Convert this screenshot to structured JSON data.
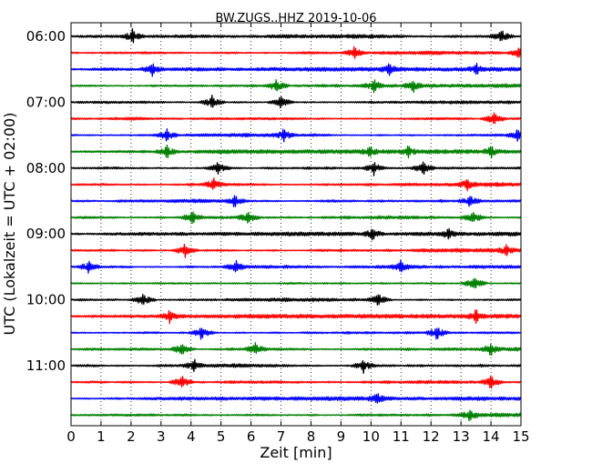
{
  "chart_data": {
    "type": "line",
    "title": "BW.ZUGS..HHZ 2019-10-06",
    "xlabel": "Zeit  [min]",
    "ylabel": "UTC (Lokalzeit = UTC + 02:00)",
    "xlim": [
      0,
      15
    ],
    "x_ticks": [
      "0",
      "1",
      "2",
      "3",
      "4",
      "5",
      "6",
      "7",
      "8",
      "9",
      "10",
      "11",
      "12",
      "13",
      "14",
      "15"
    ],
    "y_ticks": [
      "06:00",
      "07:00",
      "08:00",
      "09:00",
      "10:00",
      "11:00"
    ],
    "rows_per_hour": 4,
    "minutes_per_row": 15,
    "grid": "vertical dotted",
    "colors": [
      "#000000",
      "#ff0000",
      "#0000ff",
      "#008000"
    ],
    "series": [
      {
        "start": "06:00",
        "bursts": [
          2.05,
          14.35
        ]
      },
      {
        "start": "06:15",
        "bursts": [
          9.45,
          14.95
        ]
      },
      {
        "start": "06:30",
        "bursts": [
          2.7,
          10.6,
          13.5
        ]
      },
      {
        "start": "06:45",
        "bursts": [
          6.85,
          10.1,
          11.4
        ]
      },
      {
        "start": "07:00",
        "bursts": [
          4.7,
          7.0
        ]
      },
      {
        "start": "07:15",
        "bursts": [
          14.1
        ]
      },
      {
        "start": "07:30",
        "bursts": [
          3.2,
          7.1,
          14.9
        ]
      },
      {
        "start": "07:45",
        "bursts": [
          3.2,
          9.95,
          11.25,
          14.0
        ]
      },
      {
        "start": "08:00",
        "bursts": [
          4.9,
          10.1,
          11.75
        ]
      },
      {
        "start": "08:15",
        "bursts": [
          4.75,
          13.2
        ]
      },
      {
        "start": "08:30",
        "bursts": [
          5.45,
          13.3
        ]
      },
      {
        "start": "08:45",
        "bursts": [
          4.05,
          5.9,
          13.4
        ]
      },
      {
        "start": "09:00",
        "bursts": [
          10.05,
          12.6
        ]
      },
      {
        "start": "09:15",
        "bursts": [
          3.8,
          14.5
        ]
      },
      {
        "start": "09:30",
        "bursts": [
          0.6,
          5.5,
          11.0
        ]
      },
      {
        "start": "09:45",
        "bursts": [
          13.45
        ]
      },
      {
        "start": "10:00",
        "bursts": [
          2.4,
          10.25
        ]
      },
      {
        "start": "10:15",
        "bursts": [
          3.3,
          13.5
        ]
      },
      {
        "start": "10:30",
        "bursts": [
          4.35,
          12.2
        ]
      },
      {
        "start": "10:45",
        "bursts": [
          3.7,
          6.15,
          14.0
        ]
      },
      {
        "start": "11:00",
        "bursts": [
          4.1,
          9.75
        ]
      },
      {
        "start": "11:15",
        "bursts": [
          3.7,
          14.0
        ]
      },
      {
        "start": "11:30",
        "bursts": [
          10.2
        ]
      },
      {
        "start": "11:45",
        "bursts": [
          13.3
        ]
      }
    ]
  }
}
